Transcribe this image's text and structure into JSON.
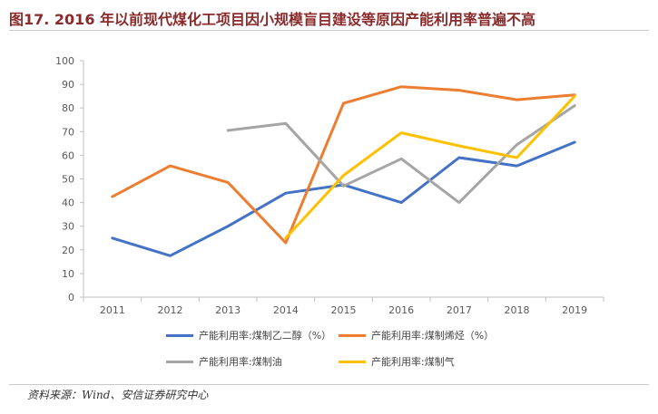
{
  "title": "图17. 2016 年以前现代煤化工项目因小规模盲目建设等原因产能利用率普遍不高",
  "source": "资料来源：Wind、安信证券研究中心",
  "chart_data": {
    "type": "line",
    "categories": [
      "2011",
      "2012",
      "2013",
      "2014",
      "2015",
      "2016",
      "2017",
      "2018",
      "2019"
    ],
    "ylim": [
      0,
      100
    ],
    "yticks": [
      0,
      10,
      20,
      30,
      40,
      50,
      60,
      70,
      80,
      90,
      100
    ],
    "grid": false,
    "legend_position": "bottom",
    "series": [
      {
        "name": "产能利用率:煤制乙二醇（%）",
        "color": "#4472c4",
        "values": [
          25,
          17.5,
          30,
          44,
          47.5,
          40,
          59,
          55.5,
          65.5
        ]
      },
      {
        "name": "产能利用率:煤制烯烃（%）",
        "color": "#ed7d31",
        "values": [
          42.5,
          55.5,
          48.5,
          23,
          82,
          89,
          87.5,
          83.5,
          85.5
        ]
      },
      {
        "name": "产能利用率:煤制油",
        "color": "#a5a5a5",
        "values": [
          null,
          null,
          70.5,
          73.5,
          47,
          58.5,
          40,
          64.5,
          81
        ]
      },
      {
        "name": "产能利用率:煤制气",
        "color": "#ffc000",
        "values": [
          null,
          null,
          null,
          25,
          51.5,
          69.5,
          64,
          59,
          85
        ]
      }
    ]
  }
}
